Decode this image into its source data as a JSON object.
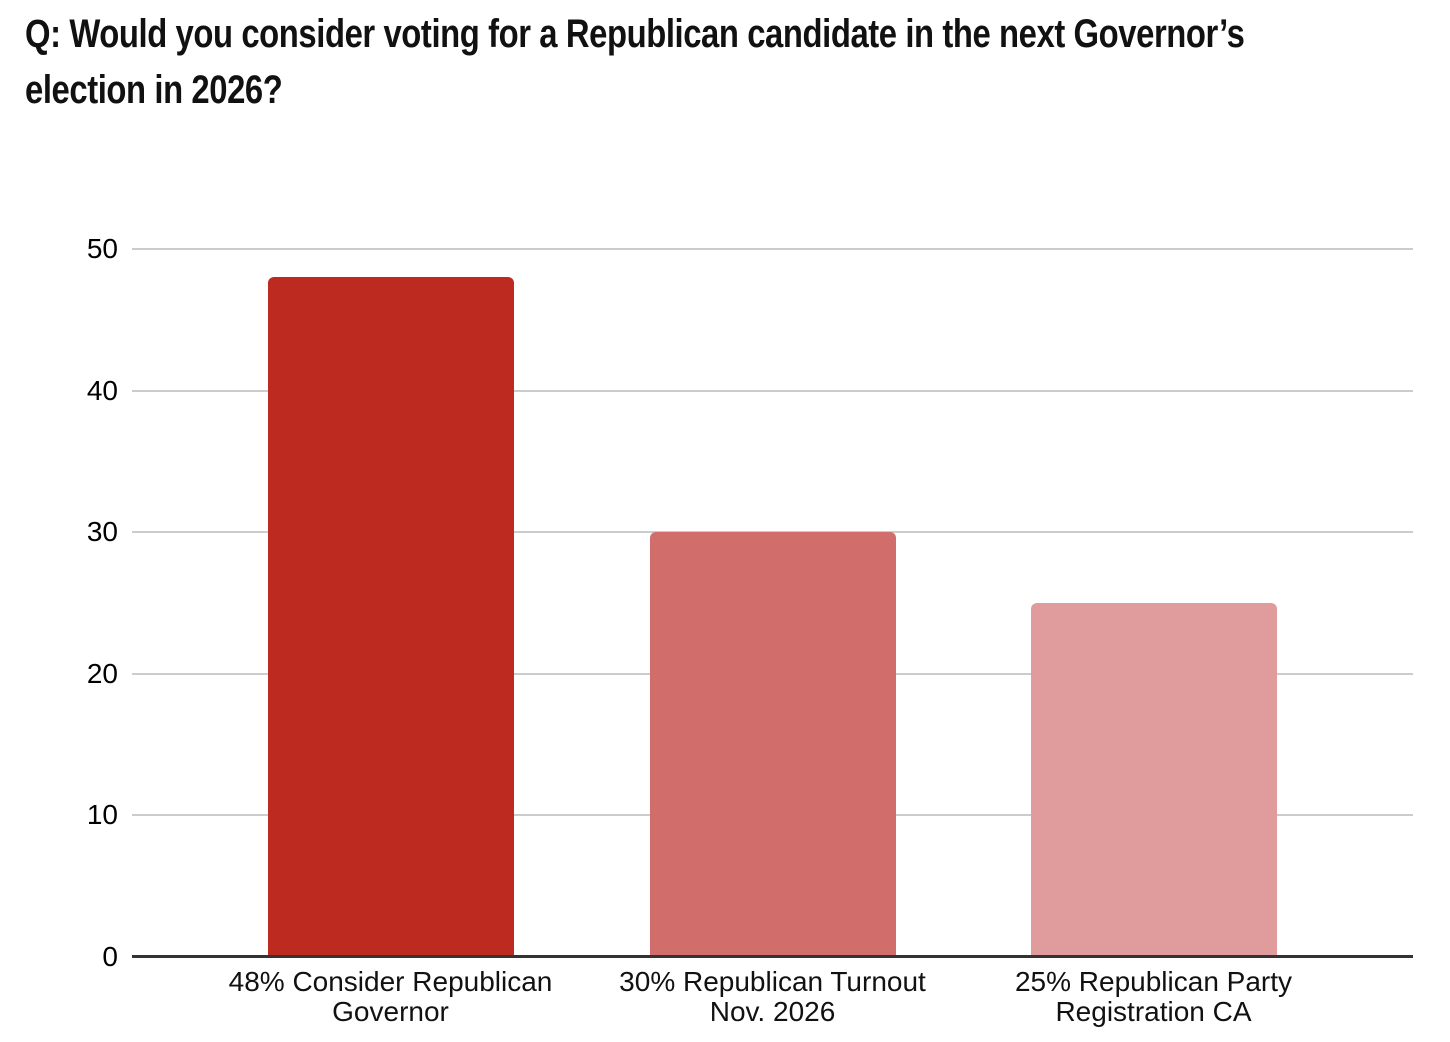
{
  "page": {
    "background": "#ffffff"
  },
  "title": {
    "full": "Q: Would you consider voting for a Republican candidate in the next Governor’s election in 2026?",
    "lines": [
      "Q: Would you consider voting for a Republican candidate in the next Governor’s",
      "election in 2026?"
    ]
  },
  "chart_data": {
    "type": "bar",
    "title": "Q: Would you consider voting for a Republican candidate in the next Governor’s election in 2026?",
    "categories": [
      "48% Consider Republican\nGovernor",
      "30% Republican Turnout\nNov. 2026",
      "25% Republican Party\nRegistration CA"
    ],
    "values": [
      48,
      30,
      25
    ],
    "bar_colors": [
      "#bd2a1f",
      "#d16e6b",
      "#e09c9c"
    ],
    "xlabel": "",
    "ylabel": "",
    "ylim": [
      0,
      50
    ],
    "yticks": [
      0,
      10,
      20,
      30,
      40,
      50
    ],
    "grid": true,
    "gridline_color": "#cccccc",
    "axis_line_color": "#333333",
    "tick_label_color": "#000000",
    "category_label_color": "#111111",
    "legend_position": "none",
    "background_color": "#ffffff"
  }
}
